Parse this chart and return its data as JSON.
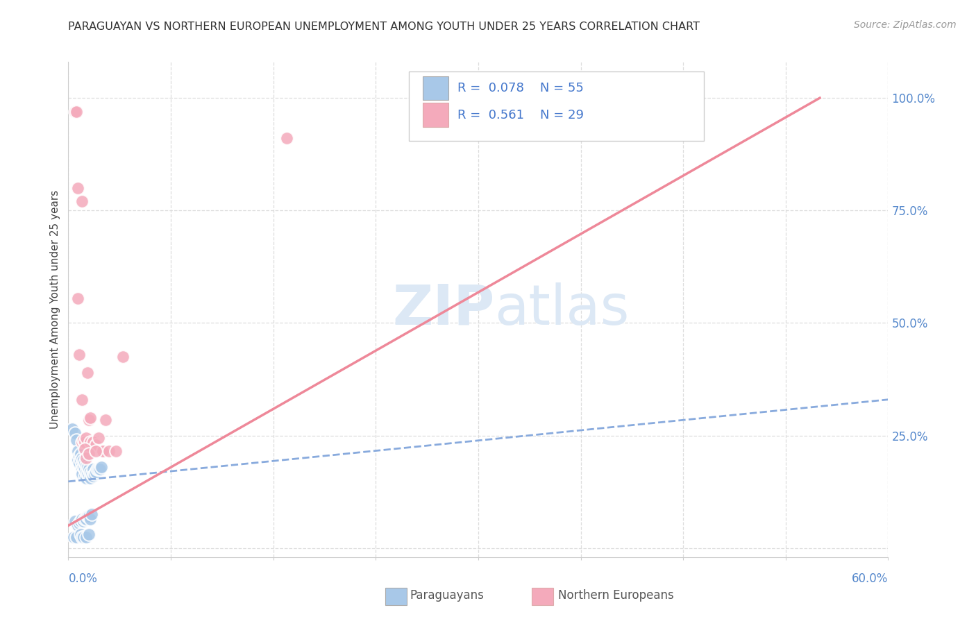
{
  "title": "PARAGUAYAN VS NORTHERN EUROPEAN UNEMPLOYMENT AMONG YOUTH UNDER 25 YEARS CORRELATION CHART",
  "source": "Source: ZipAtlas.com",
  "ylabel": "Unemployment Among Youth under 25 years",
  "xlim": [
    0.0,
    0.6
  ],
  "ylim": [
    -0.02,
    1.08
  ],
  "ytick_values": [
    0.0,
    0.25,
    0.5,
    0.75,
    1.0
  ],
  "ytick_labels": [
    "",
    "25.0%",
    "50.0%",
    "75.0%",
    "100.0%"
  ],
  "blue_R": 0.078,
  "blue_N": 55,
  "pink_R": 0.561,
  "pink_N": 29,
  "blue_color": "#A8C8E8",
  "pink_color": "#F4AABB",
  "blue_line_color": "#88AADD",
  "pink_line_color": "#EE8899",
  "watermark_color": "#DCE8F5",
  "blue_scatter_x": [
    0.003,
    0.004,
    0.005,
    0.005,
    0.006,
    0.006,
    0.007,
    0.007,
    0.007,
    0.008,
    0.008,
    0.008,
    0.009,
    0.009,
    0.009,
    0.01,
    0.01,
    0.01,
    0.01,
    0.01,
    0.011,
    0.011,
    0.011,
    0.012,
    0.012,
    0.012,
    0.012,
    0.013,
    0.013,
    0.013,
    0.013,
    0.014,
    0.014,
    0.014,
    0.015,
    0.015,
    0.015,
    0.016,
    0.016,
    0.016,
    0.017,
    0.017,
    0.018,
    0.018,
    0.019,
    0.02,
    0.021,
    0.022,
    0.023,
    0.024,
    0.009,
    0.01,
    0.011,
    0.013,
    0.015
  ],
  "blue_scatter_y": [
    0.265,
    0.025,
    0.255,
    0.06,
    0.24,
    0.025,
    0.215,
    0.195,
    0.05,
    0.205,
    0.19,
    0.055,
    0.21,
    0.195,
    0.06,
    0.2,
    0.185,
    0.175,
    0.165,
    0.065,
    0.195,
    0.18,
    0.06,
    0.19,
    0.175,
    0.16,
    0.065,
    0.185,
    0.17,
    0.155,
    0.065,
    0.18,
    0.165,
    0.07,
    0.175,
    0.16,
    0.07,
    0.17,
    0.155,
    0.065,
    0.165,
    0.075,
    0.175,
    0.16,
    0.165,
    0.17,
    0.175,
    0.175,
    0.175,
    0.18,
    0.03,
    0.025,
    0.025,
    0.025,
    0.03
  ],
  "pink_scatter_x": [
    0.005,
    0.006,
    0.007,
    0.007,
    0.008,
    0.01,
    0.01,
    0.011,
    0.012,
    0.013,
    0.014,
    0.015,
    0.016,
    0.016,
    0.018,
    0.02,
    0.022,
    0.025,
    0.025,
    0.027,
    0.03,
    0.035,
    0.04,
    0.01,
    0.012,
    0.013,
    0.015,
    0.02,
    0.16
  ],
  "pink_scatter_y": [
    0.97,
    0.97,
    0.8,
    0.555,
    0.43,
    0.77,
    0.235,
    0.24,
    0.235,
    0.245,
    0.39,
    0.285,
    0.29,
    0.235,
    0.235,
    0.23,
    0.245,
    0.215,
    0.215,
    0.285,
    0.215,
    0.215,
    0.425,
    0.33,
    0.22,
    0.2,
    0.21,
    0.215,
    0.91
  ],
  "blue_line_x": [
    0.0,
    0.6
  ],
  "blue_line_y": [
    0.148,
    0.33
  ],
  "pink_line_x": [
    0.0,
    0.55
  ],
  "pink_line_y": [
    0.05,
    1.0
  ]
}
